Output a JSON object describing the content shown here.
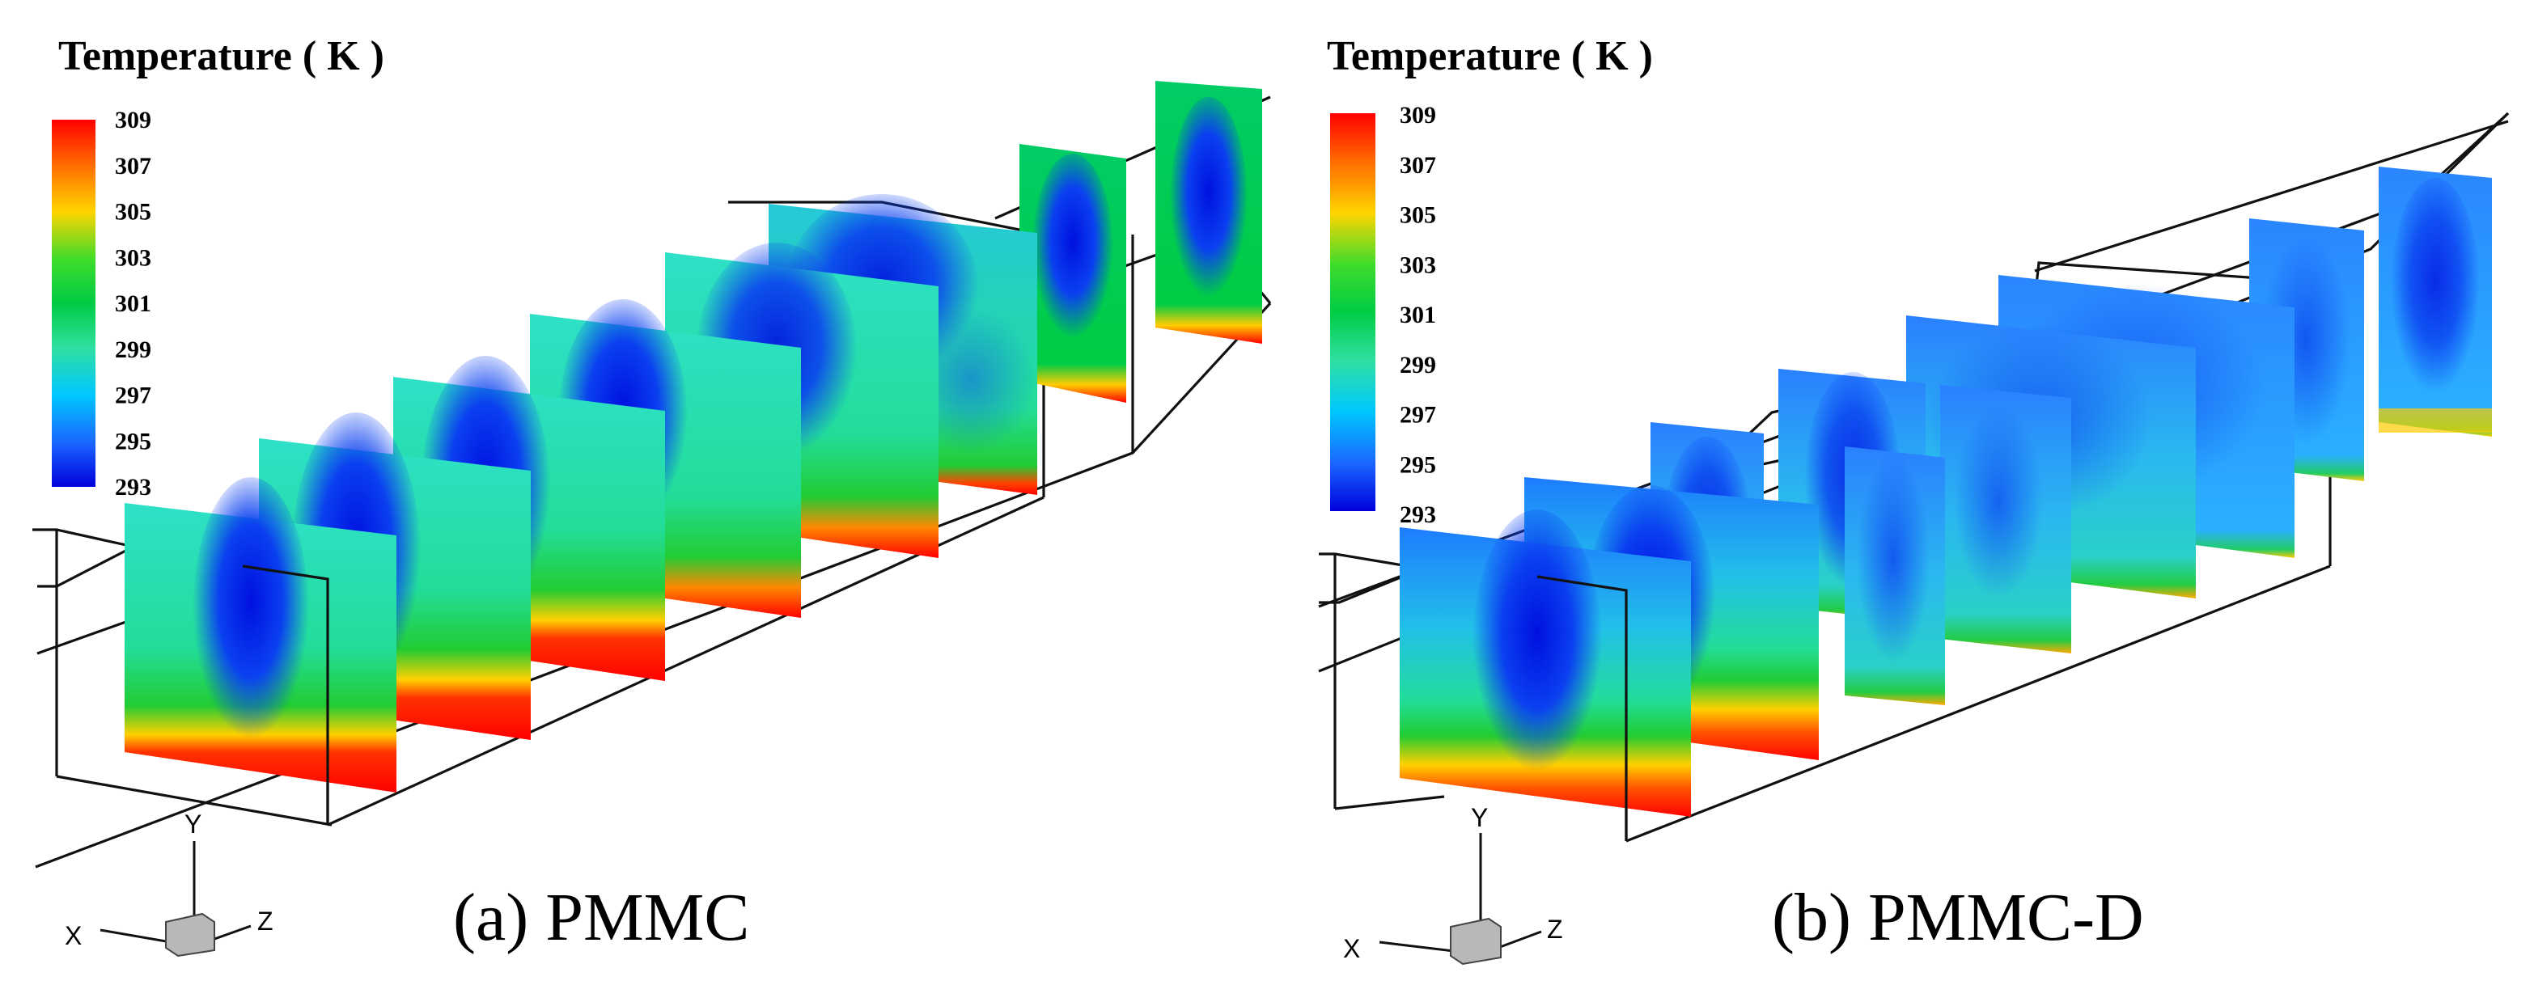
{
  "panels": [
    {
      "legend_title": "Temperature ( K )",
      "caption": "(a)  PMMC",
      "axis_labels": {
        "x": "X",
        "y": "Y",
        "z": "Z"
      }
    },
    {
      "legend_title": "Temperature ( K )",
      "caption": "(b)  PMMC-D",
      "axis_labels": {
        "x": "X",
        "y": "Y",
        "z": "Z"
      }
    }
  ],
  "colorbar": {
    "ticks": [
      "309",
      "307",
      "305",
      "303",
      "301",
      "299",
      "297",
      "295",
      "293"
    ],
    "min": 293,
    "max": 309,
    "colors": [
      "#ff0000",
      "#ff6600",
      "#ffd000",
      "#33dd22",
      "#00cc44",
      "#22dd99",
      "#00ccff",
      "#1a6bff",
      "#0000dd"
    ]
  }
}
